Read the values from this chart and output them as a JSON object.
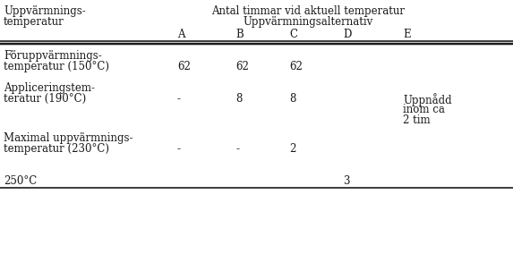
{
  "header_col1_line1": "Uppvärmnings-",
  "header_col1_line2": "temperatur",
  "header_top_line1": "Antal timmar vid aktuell temperatur",
  "header_top_line2": "Uppvärmningsalternativ",
  "col_headers": [
    "A",
    "B",
    "C",
    "D",
    "E"
  ],
  "rows": [
    {
      "label_line1": "Föruppvärmnings-",
      "label_line2": "temperatur (150°C)",
      "val_A": "62",
      "val_B": "62",
      "val_C": "62",
      "val_D": "",
      "val_E": ""
    },
    {
      "label_line1": "Appliceringstem-",
      "label_line2": "teratur (190°C)",
      "val_A": "-",
      "val_B": "8",
      "val_C": "8",
      "val_D": "",
      "val_E": "Uppnådd\ninom ca\n2 tim"
    },
    {
      "label_line1": "Maximal uppvärmnings-",
      "label_line2": "temperatur (230°C)",
      "val_A": "-",
      "val_B": "-",
      "val_C": "2",
      "val_D": "",
      "val_E": ""
    },
    {
      "label_line1": "250°C",
      "label_line2": "",
      "val_A": "",
      "val_B": "",
      "val_C": "",
      "val_D": "3",
      "val_E": ""
    }
  ],
  "bg_color": "#ffffff",
  "text_color": "#1a1a1a",
  "font_size": 8.5
}
